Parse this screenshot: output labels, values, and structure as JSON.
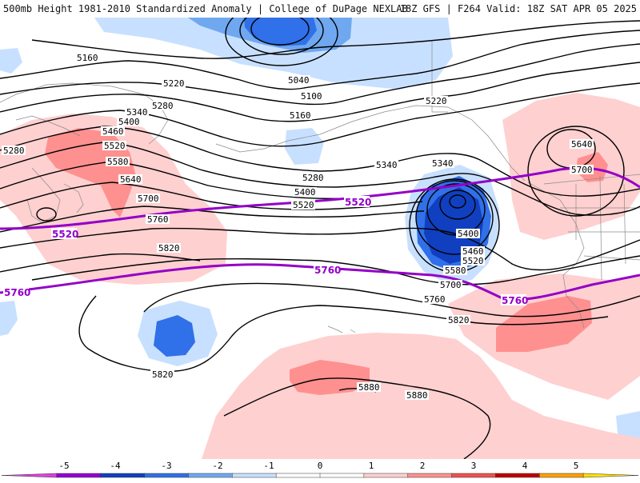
{
  "header": {
    "left_title": "500mb Height 1981-2010 Standardized Anomaly | College of DuPage NEXLAB",
    "right_title": "18Z GFS | F264 Valid: 18Z SAT APR 05 2025"
  },
  "colorbar": {
    "ticks": [
      "-5",
      "-4",
      "-3",
      "-2",
      "-1",
      "0",
      "1",
      "2",
      "3",
      "4",
      "5"
    ],
    "colors": [
      "#e040e0",
      "#9400d3",
      "#1040c0",
      "#3070e8",
      "#70a8f0",
      "#c8e0ff",
      "#ffffff",
      "#ffffff",
      "#ffd0d0",
      "#ff9090",
      "#f05050",
      "#c00000",
      "#ffa000",
      "#ffe000"
    ]
  },
  "height_labels": [
    "5160",
    "5220",
    "5280",
    "5340",
    "5400",
    "5460",
    "5520",
    "5580",
    "5640",
    "5700",
    "5760",
    "5820",
    "5280",
    "5040",
    "5100",
    "5160",
    "5220",
    "5280",
    "5340",
    "5400",
    "5520",
    "5340",
    "5400",
    "5460",
    "5520",
    "5580",
    "5700",
    "5760",
    "5820",
    "5640",
    "5700",
    "5820",
    "5880",
    "5880"
  ],
  "purple_labels": [
    "5520",
    "5520",
    "5760",
    "5760",
    "5760"
  ]
}
